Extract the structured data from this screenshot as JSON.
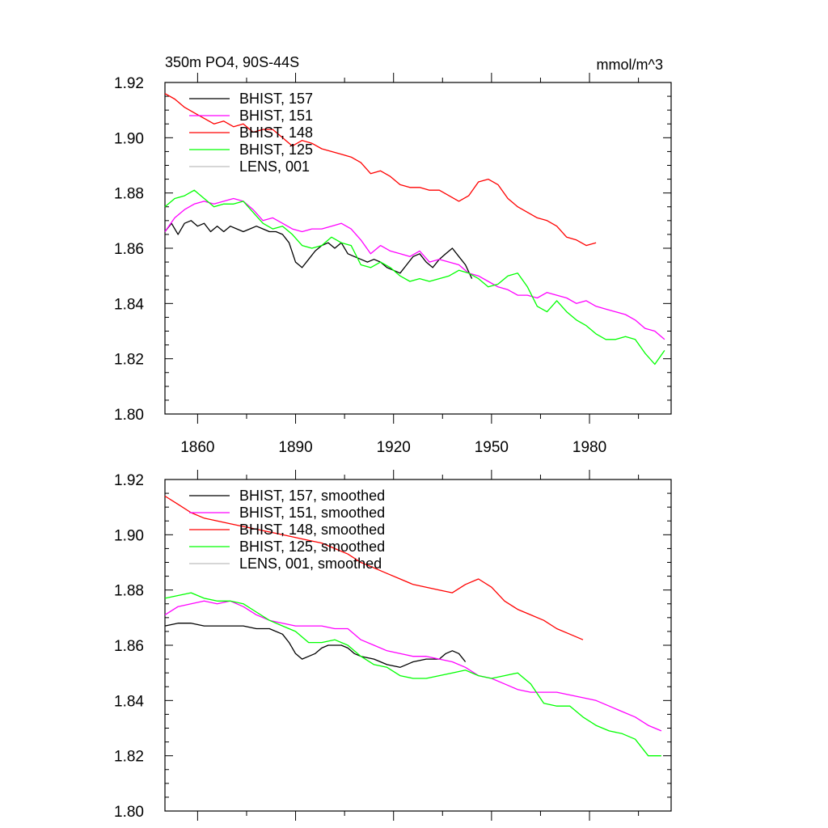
{
  "figure": {
    "title_left": "350m PO4, 90S-44S",
    "title_right": "mmol/m^3"
  },
  "chart_data": [
    {
      "type": "line",
      "title": "350m PO4, 90S-44S",
      "units": "mmol/m^3",
      "xlim": [
        1850,
        2005
      ],
      "ylim": [
        1.8,
        1.92
      ],
      "x_ticks": [
        1860,
        1890,
        1920,
        1950,
        1980
      ],
      "x_tick_labels": [
        "1860",
        "1890",
        "1920",
        "1950",
        "1980"
      ],
      "y_ticks": [
        1.8,
        1.82,
        1.84,
        1.86,
        1.88,
        1.9,
        1.92
      ],
      "y_tick_labels": [
        "1.80",
        "1.82",
        "1.84",
        "1.86",
        "1.88",
        "1.90",
        "1.92"
      ],
      "legend_position": "top-left",
      "series": [
        {
          "name": "BHIST, 157",
          "color": "#000000",
          "x": [
            1850,
            1852,
            1854,
            1856,
            1858,
            1860,
            1862,
            1864,
            1866,
            1868,
            1870,
            1872,
            1874,
            1876,
            1878,
            1880,
            1882,
            1884,
            1886,
            1888,
            1890,
            1892,
            1894,
            1896,
            1898,
            1900,
            1902,
            1904,
            1906,
            1908,
            1910,
            1912,
            1914,
            1916,
            1918,
            1920,
            1922,
            1924,
            1926,
            1928,
            1930,
            1932,
            1934,
            1936,
            1938,
            1940,
            1942,
            1944
          ],
          "values": [
            1.866,
            1.869,
            1.865,
            1.869,
            1.87,
            1.868,
            1.869,
            1.866,
            1.868,
            1.866,
            1.868,
            1.867,
            1.866,
            1.867,
            1.868,
            1.867,
            1.866,
            1.866,
            1.865,
            1.862,
            1.855,
            1.853,
            1.856,
            1.859,
            1.861,
            1.862,
            1.86,
            1.862,
            1.858,
            1.857,
            1.856,
            1.855,
            1.856,
            1.855,
            1.853,
            1.852,
            1.851,
            1.854,
            1.857,
            1.858,
            1.855,
            1.853,
            1.856,
            1.858,
            1.86,
            1.857,
            1.854,
            1.849
          ]
        },
        {
          "name": "BHIST, 151",
          "color": "#ff00ff",
          "x": [
            1850,
            1853,
            1856,
            1859,
            1862,
            1865,
            1868,
            1871,
            1874,
            1877,
            1880,
            1883,
            1886,
            1889,
            1892,
            1895,
            1898,
            1901,
            1904,
            1907,
            1910,
            1913,
            1916,
            1919,
            1922,
            1925,
            1928,
            1931,
            1934,
            1937,
            1940,
            1943,
            1946,
            1949,
            1952,
            1955,
            1958,
            1961,
            1964,
            1967,
            1970,
            1973,
            1976,
            1979,
            1982,
            1985,
            1988,
            1991,
            1994,
            1997,
            2000,
            2003
          ],
          "values": [
            1.866,
            1.871,
            1.874,
            1.876,
            1.877,
            1.876,
            1.877,
            1.878,
            1.877,
            1.874,
            1.87,
            1.871,
            1.869,
            1.867,
            1.866,
            1.867,
            1.867,
            1.868,
            1.869,
            1.867,
            1.863,
            1.858,
            1.861,
            1.859,
            1.858,
            1.857,
            1.859,
            1.855,
            1.856,
            1.855,
            1.854,
            1.851,
            1.85,
            1.848,
            1.846,
            1.845,
            1.843,
            1.843,
            1.842,
            1.844,
            1.843,
            1.842,
            1.84,
            1.841,
            1.839,
            1.838,
            1.837,
            1.836,
            1.834,
            1.831,
            1.83,
            1.827
          ]
        },
        {
          "name": "BHIST, 148",
          "color": "#ff0000",
          "x": [
            1850,
            1853,
            1856,
            1859,
            1862,
            1865,
            1868,
            1871,
            1874,
            1877,
            1880,
            1883,
            1886,
            1889,
            1892,
            1895,
            1898,
            1901,
            1904,
            1907,
            1910,
            1913,
            1916,
            1919,
            1922,
            1925,
            1928,
            1931,
            1934,
            1937,
            1940,
            1943,
            1946,
            1949,
            1952,
            1955,
            1958,
            1961,
            1964,
            1967,
            1970,
            1973,
            1976,
            1979,
            1982
          ],
          "values": [
            1.916,
            1.914,
            1.911,
            1.909,
            1.907,
            1.905,
            1.906,
            1.904,
            1.905,
            1.902,
            1.903,
            1.903,
            1.9,
            1.897,
            1.899,
            1.898,
            1.896,
            1.895,
            1.894,
            1.893,
            1.891,
            1.887,
            1.888,
            1.886,
            1.883,
            1.882,
            1.882,
            1.881,
            1.881,
            1.879,
            1.877,
            1.879,
            1.884,
            1.885,
            1.883,
            1.878,
            1.875,
            1.873,
            1.871,
            1.87,
            1.868,
            1.864,
            1.863,
            1.861,
            1.862
          ]
        },
        {
          "name": "BHIST, 125",
          "color": "#00ff00",
          "x": [
            1850,
            1853,
            1856,
            1859,
            1862,
            1865,
            1868,
            1871,
            1874,
            1877,
            1880,
            1883,
            1886,
            1889,
            1892,
            1895,
            1898,
            1901,
            1904,
            1907,
            1910,
            1913,
            1916,
            1919,
            1922,
            1925,
            1928,
            1931,
            1934,
            1937,
            1940,
            1943,
            1946,
            1949,
            1952,
            1955,
            1958,
            1961,
            1964,
            1967,
            1970,
            1973,
            1976,
            1979,
            1982,
            1985,
            1988,
            1991,
            1994,
            1997,
            2000,
            2003
          ],
          "values": [
            1.875,
            1.878,
            1.879,
            1.881,
            1.878,
            1.875,
            1.876,
            1.876,
            1.877,
            1.873,
            1.869,
            1.867,
            1.868,
            1.865,
            1.861,
            1.86,
            1.861,
            1.864,
            1.862,
            1.861,
            1.854,
            1.853,
            1.855,
            1.853,
            1.85,
            1.848,
            1.849,
            1.848,
            1.849,
            1.85,
            1.852,
            1.851,
            1.849,
            1.846,
            1.847,
            1.85,
            1.851,
            1.846,
            1.839,
            1.837,
            1.841,
            1.837,
            1.834,
            1.832,
            1.829,
            1.827,
            1.827,
            1.828,
            1.827,
            1.822,
            1.818,
            1.823
          ]
        },
        {
          "name": "LENS, 001",
          "color": "#bdbdbd",
          "x": [],
          "values": []
        }
      ]
    },
    {
      "type": "line",
      "title": "",
      "xlim": [
        1850,
        2005
      ],
      "ylim": [
        1.8,
        1.92
      ],
      "x_ticks": [
        1860,
        1890,
        1920,
        1950,
        1980
      ],
      "y_ticks": [
        1.8,
        1.82,
        1.84,
        1.86,
        1.88,
        1.9,
        1.92
      ],
      "y_tick_labels": [
        "1.80",
        "1.82",
        "1.84",
        "1.86",
        "1.88",
        "1.90",
        "1.92"
      ],
      "legend_position": "top-left",
      "series": [
        {
          "name": "BHIST, 157, smoothed",
          "color": "#000000",
          "x": [
            1850,
            1854,
            1858,
            1862,
            1866,
            1870,
            1874,
            1878,
            1882,
            1886,
            1888,
            1890,
            1892,
            1894,
            1896,
            1898,
            1900,
            1902,
            1904,
            1906,
            1908,
            1910,
            1914,
            1918,
            1922,
            1926,
            1930,
            1934,
            1936,
            1938,
            1940,
            1942
          ],
          "values": [
            1.867,
            1.868,
            1.868,
            1.867,
            1.867,
            1.867,
            1.867,
            1.866,
            1.866,
            1.864,
            1.861,
            1.857,
            1.855,
            1.856,
            1.857,
            1.859,
            1.86,
            1.86,
            1.86,
            1.859,
            1.857,
            1.856,
            1.855,
            1.853,
            1.852,
            1.854,
            1.855,
            1.855,
            1.857,
            1.858,
            1.857,
            1.854
          ]
        },
        {
          "name": "BHIST, 151, smoothed",
          "color": "#ff00ff",
          "x": [
            1850,
            1854,
            1858,
            1862,
            1866,
            1870,
            1874,
            1878,
            1882,
            1886,
            1890,
            1894,
            1898,
            1902,
            1906,
            1910,
            1914,
            1918,
            1922,
            1926,
            1930,
            1934,
            1938,
            1942,
            1946,
            1950,
            1954,
            1958,
            1962,
            1966,
            1970,
            1974,
            1978,
            1982,
            1986,
            1990,
            1994,
            1998,
            2002
          ],
          "values": [
            1.871,
            1.874,
            1.875,
            1.876,
            1.875,
            1.876,
            1.874,
            1.871,
            1.869,
            1.868,
            1.867,
            1.867,
            1.867,
            1.866,
            1.866,
            1.862,
            1.86,
            1.858,
            1.857,
            1.856,
            1.856,
            1.855,
            1.854,
            1.852,
            1.849,
            1.848,
            1.846,
            1.844,
            1.843,
            1.843,
            1.843,
            1.842,
            1.841,
            1.84,
            1.838,
            1.836,
            1.834,
            1.831,
            1.829
          ]
        },
        {
          "name": "BHIST, 148, smoothed",
          "color": "#ff0000",
          "x": [
            1850,
            1854,
            1858,
            1862,
            1866,
            1870,
            1874,
            1878,
            1882,
            1886,
            1890,
            1894,
            1898,
            1902,
            1906,
            1910,
            1914,
            1918,
            1922,
            1926,
            1930,
            1934,
            1938,
            1942,
            1946,
            1950,
            1954,
            1958,
            1962,
            1966,
            1970,
            1974,
            1978
          ],
          "values": [
            1.914,
            1.911,
            1.908,
            1.906,
            1.905,
            1.904,
            1.903,
            1.902,
            1.901,
            1.9,
            1.899,
            1.898,
            1.897,
            1.895,
            1.893,
            1.89,
            1.888,
            1.886,
            1.884,
            1.882,
            1.881,
            1.88,
            1.879,
            1.882,
            1.884,
            1.881,
            1.876,
            1.873,
            1.871,
            1.869,
            1.866,
            1.864,
            1.862
          ]
        },
        {
          "name": "BHIST, 125, smoothed",
          "color": "#00ff00",
          "x": [
            1850,
            1854,
            1858,
            1862,
            1866,
            1870,
            1874,
            1878,
            1882,
            1886,
            1890,
            1894,
            1898,
            1902,
            1906,
            1910,
            1914,
            1918,
            1922,
            1926,
            1930,
            1934,
            1938,
            1942,
            1946,
            1950,
            1954,
            1958,
            1962,
            1966,
            1970,
            1974,
            1978,
            1982,
            1986,
            1990,
            1994,
            1998,
            2002
          ],
          "values": [
            1.877,
            1.878,
            1.879,
            1.877,
            1.876,
            1.876,
            1.875,
            1.872,
            1.869,
            1.867,
            1.865,
            1.861,
            1.861,
            1.862,
            1.86,
            1.856,
            1.853,
            1.852,
            1.849,
            1.848,
            1.848,
            1.849,
            1.85,
            1.851,
            1.849,
            1.848,
            1.849,
            1.85,
            1.846,
            1.839,
            1.838,
            1.838,
            1.834,
            1.831,
            1.829,
            1.828,
            1.826,
            1.82,
            1.82
          ]
        },
        {
          "name": "LENS, 001, smoothed",
          "color": "#bdbdbd",
          "x": [],
          "values": []
        }
      ]
    }
  ]
}
